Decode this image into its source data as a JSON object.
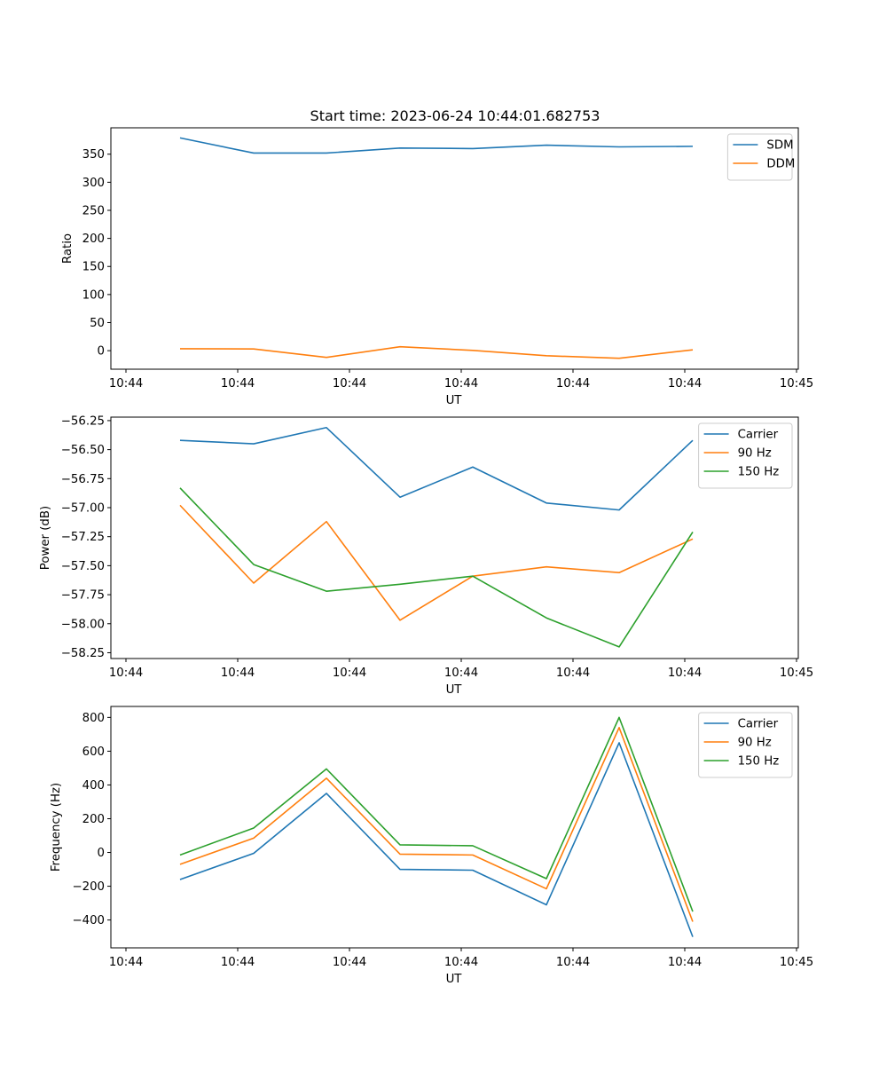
{
  "figure_title": "Start time: 2023-06-24 10:44:01.682753",
  "chart_data": [
    {
      "type": "line",
      "title": "",
      "xlabel": "UT",
      "ylabel": "Ratio",
      "xticks": [
        "10:44",
        "10:44",
        "10:44",
        "10:44",
        "10:44",
        "10:44",
        "10:45"
      ],
      "yticks": [
        0,
        50,
        100,
        150,
        200,
        250,
        300,
        350
      ],
      "ylim": [
        -33,
        397
      ],
      "grid": false,
      "legend_position": "upper right",
      "series": [
        {
          "name": "SDM",
          "color": "#1f77b4",
          "values": [
            379,
            352,
            352,
            361,
            360,
            366,
            363,
            364
          ]
        },
        {
          "name": "DDM",
          "color": "#ff7f0e",
          "values": [
            3.5,
            3.0,
            -12.0,
            7.0,
            0.5,
            -9.0,
            -13.5,
            1.5
          ]
        }
      ]
    },
    {
      "type": "line",
      "title": "",
      "xlabel": "UT",
      "ylabel": "Power (dB)",
      "xticks": [
        "10:44",
        "10:44",
        "10:44",
        "10:44",
        "10:44",
        "10:44",
        "10:45"
      ],
      "yticks": [
        -58.25,
        -58.0,
        -57.75,
        -57.5,
        -57.25,
        -57.0,
        -56.75,
        -56.5,
        -56.25
      ],
      "ytick_labels": [
        "−58.25",
        "−58.00",
        "−57.75",
        "−57.50",
        "−57.25",
        "−57.00",
        "−56.75",
        "−56.50",
        "−56.25"
      ],
      "ylim": [
        -58.3,
        -56.22
      ],
      "grid": false,
      "legend_position": "upper right",
      "series": [
        {
          "name": "Carrier",
          "color": "#1f77b4",
          "values": [
            -56.42,
            -56.45,
            -56.31,
            -56.91,
            -56.65,
            -56.96,
            -57.02,
            -56.42
          ]
        },
        {
          "name": "90 Hz",
          "color": "#ff7f0e",
          "values": [
            -56.98,
            -57.65,
            -57.12,
            -57.97,
            -57.59,
            -57.51,
            -57.56,
            -57.27
          ]
        },
        {
          "name": "150 Hz",
          "color": "#2ca02c",
          "values": [
            -56.83,
            -57.49,
            -57.72,
            -57.66,
            -57.59,
            -57.95,
            -58.2,
            -57.21
          ]
        }
      ]
    },
    {
      "type": "line",
      "title": "",
      "xlabel": "UT",
      "ylabel": "Frequency (Hz)",
      "xticks": [
        "10:44",
        "10:44",
        "10:44",
        "10:44",
        "10:44",
        "10:44",
        "10:45"
      ],
      "yticks": [
        -400,
        -200,
        0,
        200,
        400,
        600,
        800
      ],
      "ytick_labels": [
        "−400",
        "−200",
        "0",
        "200",
        "400",
        "600",
        "800"
      ],
      "ylim": [
        -565,
        865
      ],
      "grid": false,
      "legend_position": "upper right",
      "series": [
        {
          "name": "Carrier",
          "color": "#1f77b4",
          "values": [
            -160,
            -5,
            350,
            -100,
            -105,
            -310,
            650,
            -500
          ]
        },
        {
          "name": "90 Hz",
          "color": "#ff7f0e",
          "values": [
            -70,
            85,
            440,
            -10,
            -15,
            -215,
            740,
            -410
          ]
        },
        {
          "name": "150 Hz",
          "color": "#2ca02c",
          "values": [
            -15,
            145,
            495,
            45,
            40,
            -155,
            800,
            -350
          ]
        }
      ]
    }
  ]
}
